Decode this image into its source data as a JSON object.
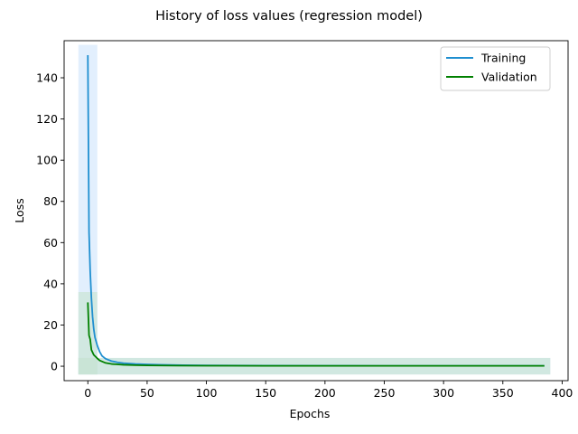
{
  "chart_data": {
    "type": "line",
    "title": "History of loss values (regression model)",
    "xlabel": "Epochs",
    "ylabel": "Loss",
    "xlim": [
      -20,
      405
    ],
    "ylim": [
      -7,
      158
    ],
    "xticks": [
      0,
      50,
      100,
      150,
      200,
      250,
      300,
      350,
      400
    ],
    "yticks": [
      0,
      20,
      40,
      60,
      80,
      100,
      120,
      140
    ],
    "grid": false,
    "legend_position": "top-right",
    "series": [
      {
        "name": "Training",
        "color": "#1f8fd0",
        "band_color": "#cfe4fb",
        "band": {
          "x0": -8,
          "x1": 8,
          "ymin": -4,
          "ymax": 156,
          "tail_x1": 390,
          "tail_ymin": -4,
          "tail_ymax": 4
        },
        "x": [
          0,
          1,
          2,
          3,
          4,
          5,
          6,
          8,
          10,
          12,
          15,
          20,
          25,
          30,
          40,
          50,
          60,
          80,
          100,
          150,
          200,
          250,
          300,
          350,
          385
        ],
        "y": [
          151,
          65,
          46,
          33,
          24,
          18,
          14,
          10,
          7,
          5,
          3.6,
          2.5,
          1.9,
          1.5,
          1.1,
          0.9,
          0.7,
          0.5,
          0.4,
          0.3,
          0.25,
          0.2,
          0.2,
          0.2,
          0.2
        ]
      },
      {
        "name": "Validation",
        "color": "#008000",
        "band_color": "#c6e3cf",
        "band": {
          "x0": -8,
          "x1": 8,
          "ymin": -4,
          "ymax": 36,
          "tail_x1": 390,
          "tail_ymin": -4,
          "tail_ymax": 4
        },
        "x": [
          0,
          1,
          2,
          3,
          5,
          8,
          10,
          15,
          20,
          30,
          40,
          50,
          75,
          100,
          150,
          200,
          250,
          300,
          350,
          385
        ],
        "y": [
          31,
          15,
          13,
          8,
          5.5,
          3.8,
          2.8,
          1.6,
          1.1,
          0.7,
          0.5,
          0.4,
          0.3,
          0.25,
          0.2,
          0.2,
          0.2,
          0.2,
          0.2,
          0.2
        ]
      }
    ]
  }
}
